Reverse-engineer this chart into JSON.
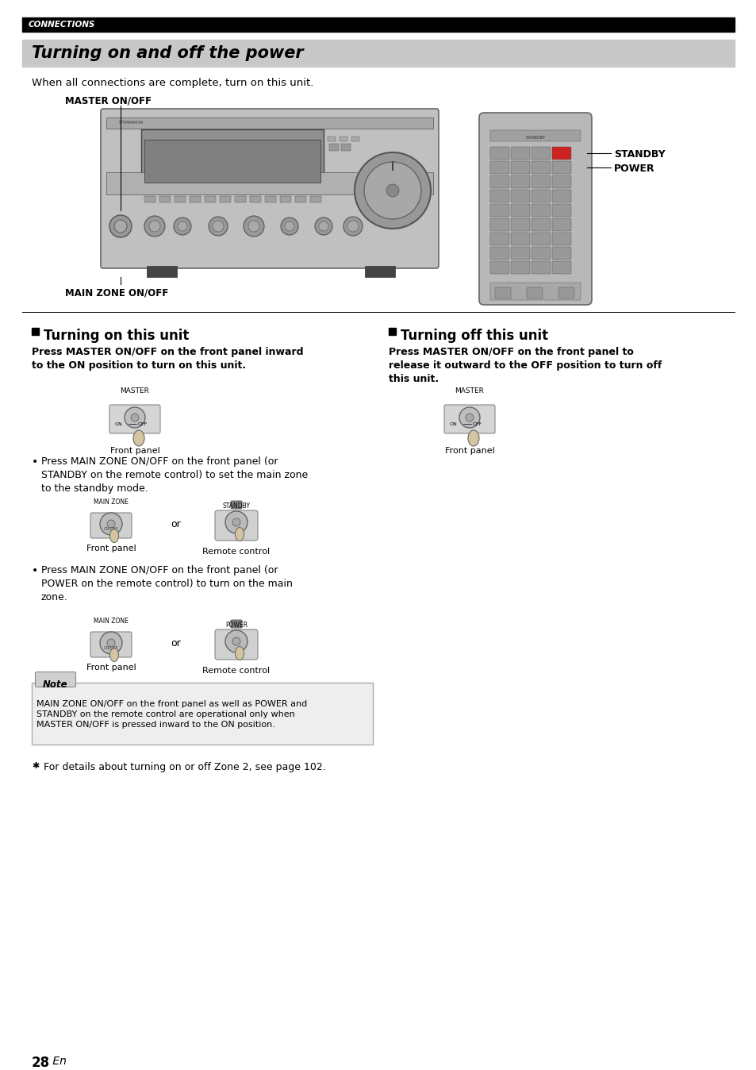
{
  "page_bg": "#ffffff",
  "header_bar_color": "#000000",
  "header_text": "CONNECTIONS",
  "header_text_color": "#ffffff",
  "title_bg": "#c8c8c8",
  "title_text": "Turning on and off the power",
  "title_text_color": "#000000",
  "intro_text": "When all connections are complete, turn on this unit.",
  "master_onoff_label": "MASTER ON/OFF",
  "main_zone_label": "MAIN ZONE ON/OFF",
  "standby_label": "STANDBY",
  "power_label": "POWER",
  "section1_title": "Turning on this unit",
  "section2_title": "Turning off this unit",
  "section1_bold": "Press MASTER ON/OFF on the front panel inward\nto the ON position to turn on this unit.",
  "section2_bold": "Press MASTER ON/OFF on the front panel to\nrelease it outward to the OFF position to turn off\nthis unit.",
  "bullet1": "Press MAIN ZONE ON/OFF on the front panel (or\nSTANDBY on the remote control) to set the main zone\nto the standby mode.",
  "bullet2": "Press MAIN ZONE ON/OFF on the front panel (or\nPOWER on the remote control) to turn on the main\nzone.",
  "or_label": "or",
  "note_title": "Note",
  "note_text": "MAIN ZONE ON/OFF on the front panel as well as POWER and\nSTANDBY on the remote control are operational only when\nMASTER ON/OFF is pressed inward to the ON position.",
  "tip_text": "For details about turning on or off Zone 2, see page 102.",
  "page_number": "28",
  "page_number_suffix": " En"
}
